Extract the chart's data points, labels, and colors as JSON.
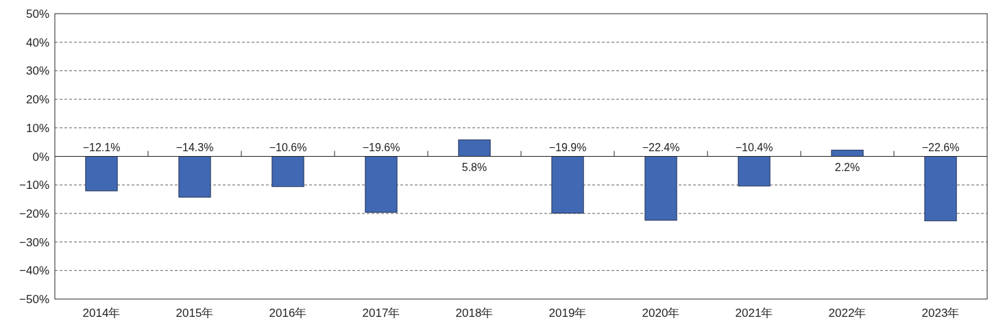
{
  "chart_data": {
    "type": "bar",
    "categories": [
      "2014年",
      "2015年",
      "2016年",
      "2017年",
      "2018年",
      "2019年",
      "2020年",
      "2021年",
      "2022年",
      "2023年"
    ],
    "values": [
      -12.1,
      -14.3,
      -10.6,
      -19.6,
      5.8,
      -19.9,
      -22.4,
      -10.4,
      2.2,
      -22.6
    ],
    "value_labels": [
      "−12.1%",
      "−14.3%",
      "−10.6%",
      "−19.6%",
      "5.8%",
      "−19.9%",
      "−22.4%",
      "−10.4%",
      "2.2%",
      "−22.6%"
    ],
    "color": "#4169b3",
    "ylim": [
      -50,
      50
    ],
    "yticks": [
      {
        "value": -50,
        "label": "−50%"
      },
      {
        "value": -40,
        "label": "−40%"
      },
      {
        "value": -30,
        "label": "−30%"
      },
      {
        "value": -20,
        "label": "−20%"
      },
      {
        "value": -10,
        "label": "−10%"
      },
      {
        "value": 0,
        "label": "0%"
      },
      {
        "value": 10,
        "label": "10%"
      },
      {
        "value": 20,
        "label": "20%"
      },
      {
        "value": 30,
        "label": "30%"
      },
      {
        "value": 40,
        "label": "40%"
      },
      {
        "value": 50,
        "label": "50%"
      }
    ],
    "grid": "y"
  }
}
